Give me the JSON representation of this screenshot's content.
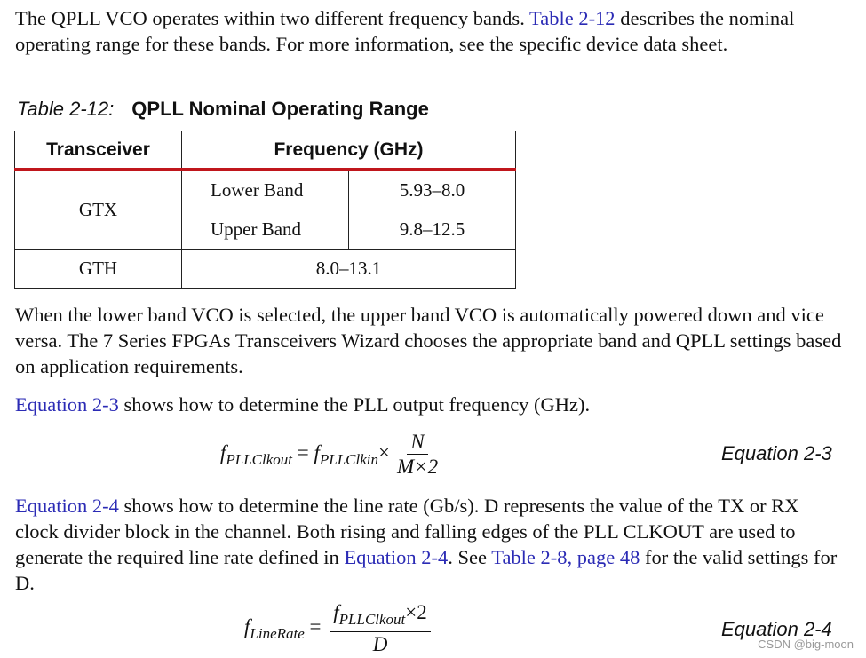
{
  "paragraphs": [
    [
      {
        "text": "The QPLL VCO operates within two different frequency bands. "
      },
      {
        "link": "Table 2-12"
      },
      {
        "text": " describes the nominal operating range for these bands. For more information, see the specific device data sheet."
      }
    ],
    [
      {
        "text": "When the lower band VCO is selected, the upper band VCO is automatically powered down and vice versa. The 7 Series FPGAs Transceivers Wizard chooses the appropriate band and QPLL settings based on application requirements."
      }
    ],
    [
      {
        "link": "Equation 2-3"
      },
      {
        "text": " shows how to determine the PLL output frequency (GHz)."
      }
    ],
    [
      {
        "link": "Equation 2-4"
      },
      {
        "text": " shows how to determine the line rate (Gb/s). D represents the value of the TX or RX clock divider block in the channel. Both rising and falling edges of the PLL CLKOUT are used to generate the required line rate defined in "
      },
      {
        "link": "Equation 2-4"
      },
      {
        "text": ". See "
      },
      {
        "link": "Table 2-8, page 48"
      },
      {
        "text": " for the valid settings for D."
      }
    ]
  ],
  "table": {
    "caption_label": "Table 2-12:",
    "caption_title": "QPLL Nominal Operating Range",
    "headers": [
      "Transceiver",
      "Frequency (GHz)"
    ],
    "rows": [
      {
        "transceiver": "GTX",
        "bands": [
          {
            "name": "Lower Band",
            "range": "5.93–8.0"
          },
          {
            "name": "Upper Band",
            "range": "9.8–12.5"
          }
        ]
      },
      {
        "transceiver": "GTH",
        "range": "8.0–13.1"
      }
    ]
  },
  "equations": [
    {
      "label": "Equation 2-3",
      "lhs": {
        "symbol": "f",
        "subscript": "PLLClkout"
      },
      "equals": "=",
      "term": {
        "symbol": "f",
        "subscript": "PLLClkin"
      },
      "times": "×",
      "numerator": "N",
      "denominator": "M×2"
    },
    {
      "label": "Equation 2-4",
      "lhs": {
        "symbol": "f",
        "subscript": "LineRate"
      },
      "equals": "=",
      "numerator": {
        "symbol": "f",
        "subscript": "PLLClkout",
        "suffix": "×2"
      },
      "denominator": "D"
    }
  ],
  "watermark": "CSDN @big-moon"
}
